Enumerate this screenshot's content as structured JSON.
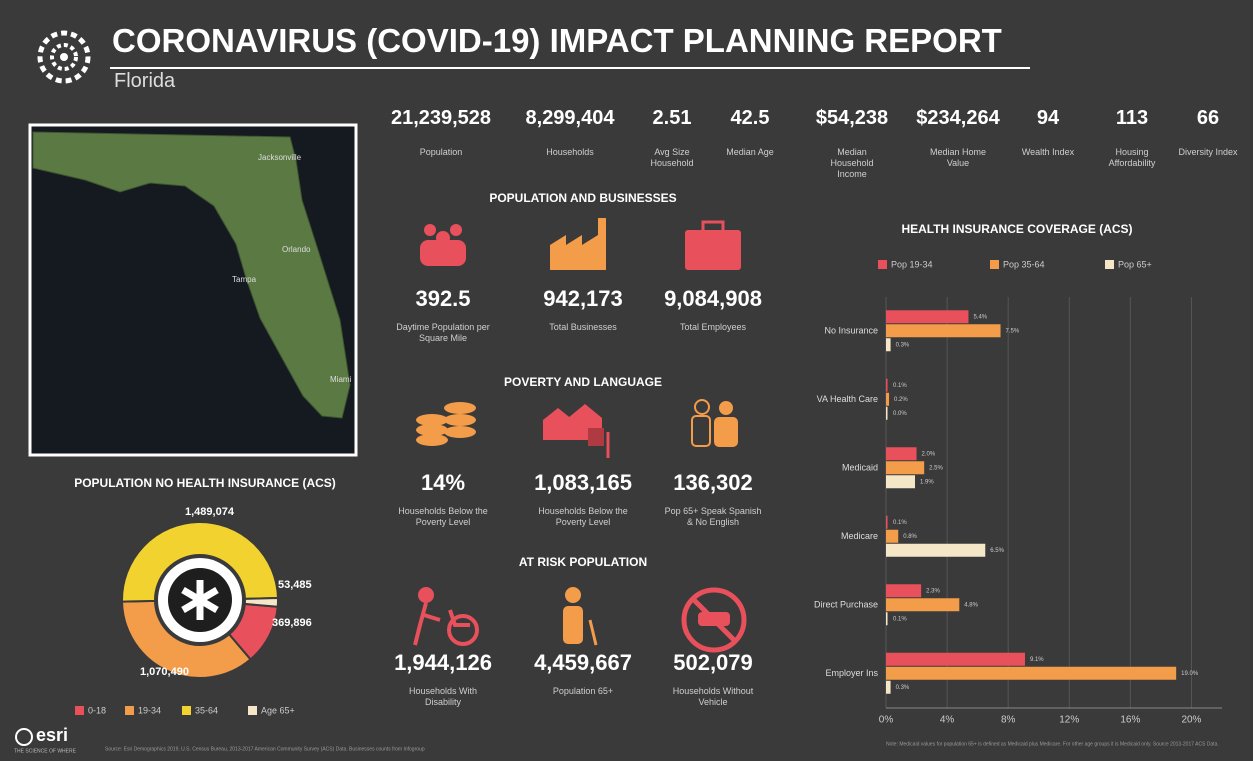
{
  "header": {
    "title": "CORONAVIRUS (COVID-19) IMPACT PLANNING REPORT",
    "subtitle": "Florida"
  },
  "stats": [
    {
      "value": "21,239,528",
      "label": "Population"
    },
    {
      "value": "8,299,404",
      "label": "Households"
    },
    {
      "value": "2.51",
      "label": "Avg Size Household"
    },
    {
      "value": "42.5",
      "label": "Median Age"
    },
    {
      "value": "$54,238",
      "label": "Median Household Income"
    },
    {
      "value": "$234,264",
      "label": "Median Home Value"
    },
    {
      "value": "94",
      "label": "Wealth Index"
    },
    {
      "value": "113",
      "label": "Housing Affordability"
    },
    {
      "value": "66",
      "label": "Diversity Index"
    }
  ],
  "map": {
    "labels": [
      "Jacksonville",
      "Orlando",
      "Tampa",
      "Miami"
    ]
  },
  "sections": [
    {
      "title": "POPULATION AND BUSINESSES",
      "items": [
        {
          "value": "392.5",
          "label": "Daytime Population per Square Mile"
        },
        {
          "value": "942,173",
          "label": "Total Businesses"
        },
        {
          "value": "9,084,908",
          "label": "Total Employees"
        }
      ]
    },
    {
      "title": "POVERTY AND LANGUAGE",
      "items": [
        {
          "value": "14%",
          "label": "Households Below the Poverty Level"
        },
        {
          "value": "1,083,165",
          "label": "Households Below the Poverty Level"
        },
        {
          "value": "136,302",
          "label": "Pop 65+ Speak Spanish & No English"
        }
      ]
    },
    {
      "title": "AT RISK POPULATION",
      "items": [
        {
          "value": "1,944,126",
          "label": "Households With Disability"
        },
        {
          "value": "4,459,667",
          "label": "Population 65+"
        },
        {
          "value": "502,079",
          "label": "Households Without Vehicle"
        }
      ]
    }
  ],
  "chart_data": [
    {
      "type": "pie",
      "title": "POPULATION NO HEALTH INSURANCE (ACS)",
      "categories": [
        "0-18",
        "19-34",
        "35-64",
        "Age 65+"
      ],
      "values": [
        369896,
        1070490,
        1489074,
        53485
      ],
      "value_labels": [
        "369,896",
        "1,070,490",
        "1,489,074",
        "53,485"
      ],
      "colors": [
        "#e8505b",
        "#f39c4a",
        "#f2d22e",
        "#f5e6c8"
      ]
    },
    {
      "type": "hbar",
      "title": "HEALTH INSURANCE COVERAGE (ACS)",
      "categories": [
        "No Insurance",
        "VA Health Care",
        "Medicaid",
        "Medicare",
        "Direct Purchase",
        "Employer Ins"
      ],
      "series": [
        {
          "name": "Pop 19-34",
          "color": "#e8505b",
          "values": [
            5.4,
            0.1,
            2.0,
            0.1,
            2.3,
            9.1
          ],
          "value_labels": [
            "5.4%",
            "0.1%",
            "2.0%",
            "0.1%",
            "2.3%",
            "9.1%"
          ]
        },
        {
          "name": "Pop 35-64",
          "color": "#f39c4a",
          "values": [
            7.5,
            0.2,
            2.5,
            0.8,
            4.8,
            19.0
          ],
          "value_labels": [
            "7.5%",
            "0.2%",
            "2.5%",
            "0.8%",
            "4.8%",
            "19.0%"
          ]
        },
        {
          "name": "Pop 65+",
          "color": "#f5e6c8",
          "values": [
            0.3,
            0.0,
            1.9,
            6.5,
            0.1,
            0.3
          ],
          "value_labels": [
            "0.3%",
            "0.0%",
            "1.9%",
            "6.5%",
            "0.1%",
            "0.3%"
          ]
        }
      ],
      "xlim": [
        0,
        22
      ],
      "xticks": [
        {
          "value": 0,
          "label": "0%"
        },
        {
          "value": 4,
          "label": "4%"
        },
        {
          "value": 8,
          "label": "8%"
        },
        {
          "value": 12,
          "label": "12%"
        },
        {
          "value": 16,
          "label": "16%"
        },
        {
          "value": 20,
          "label": "20%"
        }
      ],
      "grid": true
    }
  ],
  "footer": {
    "logo": "esri",
    "tagline": "THE SCIENCE OF WHERE",
    "source": "Source: Esri Demographics 2019, U.S. Census Bureau, 2013-2017 American Community Survey (ACS) Data. Businesses counts from Infogroup",
    "note": "Note: Medicaid values for population 65+ is defined as Medicaid plus Medicare. For other age groups it is Medicaid only. Source 2013-2017 ACS Data."
  }
}
